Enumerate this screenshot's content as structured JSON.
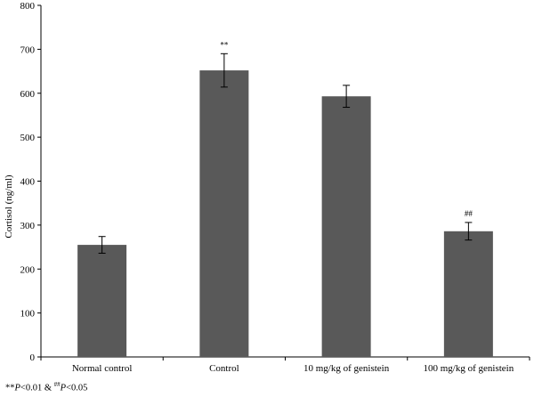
{
  "chart_data": {
    "type": "bar",
    "title": "",
    "xlabel": "",
    "ylabel": "Cortisol  (ng/ml)",
    "ylim": [
      0,
      800
    ],
    "yticks": [
      0,
      100,
      200,
      300,
      400,
      500,
      600,
      700,
      800
    ],
    "categories": [
      "Normal control",
      "Control",
      "10 mg/kg of genistein",
      "100 mg/kg of genistein"
    ],
    "values": [
      255,
      652,
      593,
      286
    ],
    "errors": [
      19,
      38,
      25,
      20
    ],
    "annotations": [
      "",
      "**",
      "",
      "##"
    ],
    "bar_color": "#595959",
    "grid": false
  },
  "footnote": {
    "part1": "**",
    "part2": "P",
    "part3": "<0.01 & ",
    "part4": "##",
    "part5": "P",
    "part6": "<0.05"
  }
}
